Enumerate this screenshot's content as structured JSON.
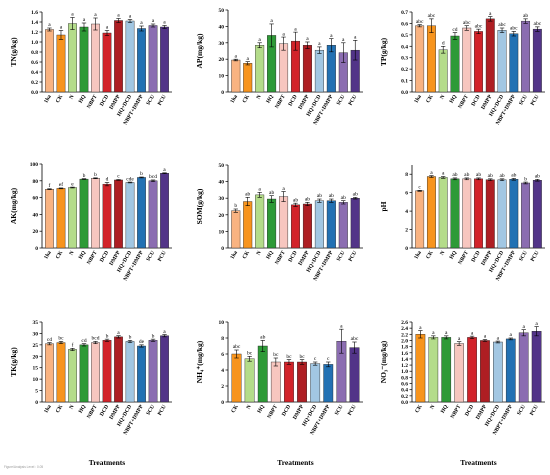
{
  "footer_text": "Figure/Analysis Level : 0.05",
  "charts": [
    {
      "type": "bar",
      "ylabel": "TN(g/kg)",
      "ylim": [
        0,
        1.6
      ],
      "yticks": [
        0,
        0.2,
        0.4,
        0.6,
        0.8,
        1.0,
        1.2,
        1.4,
        1.6
      ],
      "categories": [
        "1ha",
        "CK",
        "N",
        "HQ",
        "NBPT",
        "DCD",
        "DMPP",
        "HQ+DCD",
        "NBPT+DMPP",
        "SCU",
        "PCU"
      ],
      "values": [
        1.25,
        1.14,
        1.37,
        1.3,
        1.36,
        1.18,
        1.43,
        1.42,
        1.27,
        1.33,
        1.3
      ],
      "errors": [
        0.03,
        0.09,
        0.12,
        0.08,
        0.12,
        0.05,
        0.04,
        0.03,
        0.05,
        0.03,
        0.03
      ],
      "letters": [
        "a",
        "a",
        "a",
        "a",
        "a",
        "a",
        "a",
        "a",
        "a",
        "a",
        "a"
      ],
      "xlabel": ""
    },
    {
      "type": "bar",
      "ylabel": "AP(mg/kg)",
      "ylim": [
        0,
        50
      ],
      "yticks": [
        0,
        10,
        20,
        30,
        40,
        50
      ],
      "categories": [
        "1ha",
        "CK",
        "N",
        "HQ",
        "NBPT",
        "DCD",
        "DMPP",
        "HQ+DCD",
        "NBPT+DMPP",
        "SCU",
        "PCU"
      ],
      "values": [
        19.5,
        17.5,
        28.5,
        34.5,
        29.5,
        31,
        28.5,
        25.5,
        28.5,
        24,
        25.5
      ],
      "errors": [
        0.5,
        1,
        1.5,
        7,
        4,
        5.5,
        2,
        2,
        4,
        6,
        6
      ],
      "letters": [
        "a",
        "a",
        "a",
        "a",
        "a",
        "a",
        "a",
        "a",
        "a",
        "a",
        "a"
      ],
      "xlabel": ""
    },
    {
      "type": "bar",
      "ylabel": "TP(g/kg)",
      "ylim": [
        0,
        0.7
      ],
      "yticks": [
        0,
        0.1,
        0.2,
        0.3,
        0.4,
        0.5,
        0.6,
        0.7
      ],
      "categories": [
        "1ha",
        "CK",
        "N",
        "HQ",
        "NBPT",
        "DCD",
        "DMPP",
        "HQ+DCD",
        "NBPT+DMPP",
        "SCU",
        "PCU"
      ],
      "values": [
        0.58,
        0.58,
        0.37,
        0.49,
        0.56,
        0.53,
        0.64,
        0.54,
        0.51,
        0.62,
        0.55
      ],
      "errors": [
        0.01,
        0.06,
        0.03,
        0.03,
        0.02,
        0.02,
        0.02,
        0.02,
        0.02,
        0.02,
        0.02
      ],
      "letters": [
        "abc",
        "abc",
        "d",
        "cd",
        "abc",
        "abc",
        "a",
        "abc",
        "abc",
        "ab",
        "abc"
      ],
      "xlabel": ""
    },
    {
      "type": "bar",
      "ylabel": "AK(mg/kg)",
      "ylim": [
        0,
        100
      ],
      "yticks": [
        0,
        20,
        40,
        60,
        80,
        100
      ],
      "categories": [
        "1ha",
        "CK",
        "N",
        "HQ",
        "NBPT",
        "DCD",
        "DMPP",
        "HQ+DCD",
        "NBPT+DMPP",
        "SCU",
        "PCU"
      ],
      "values": [
        70,
        71,
        72,
        82,
        83,
        76,
        81,
        78,
        84,
        80,
        89
      ],
      "errors": [
        0.5,
        0.5,
        0.5,
        0.5,
        0.5,
        2,
        0.5,
        0.5,
        0.5,
        1,
        0.5
      ],
      "letters": [
        "f",
        "ef",
        "e",
        "b",
        "b",
        "d",
        "c",
        "cde",
        "b",
        "bcd",
        "a"
      ],
      "xlabel": ""
    },
    {
      "type": "bar",
      "ylabel": "SOM(g/kg)",
      "ylim": [
        0,
        50
      ],
      "yticks": [
        0,
        10,
        20,
        30,
        40,
        50
      ],
      "categories": [
        "1ha",
        "CK",
        "N",
        "HQ",
        "NBPT",
        "DCD",
        "DMPP",
        "HQ+DCD",
        "NBPT+DMPP",
        "SCU",
        "PCU"
      ],
      "values": [
        22.5,
        28,
        32,
        29.5,
        31,
        26,
        26.5,
        28.5,
        28.5,
        27.5,
        30
      ],
      "errors": [
        1,
        2.5,
        1.5,
        2,
        3,
        1,
        1,
        1,
        1,
        1,
        0.5
      ],
      "letters": [
        "b",
        "ab",
        "a",
        "ab",
        "a",
        "ab",
        "ab",
        "ab",
        "ab",
        "ab",
        "ab"
      ],
      "xlabel": ""
    },
    {
      "type": "bar",
      "ylabel": "pH",
      "ylim": [
        0,
        9
      ],
      "yticks": [
        0,
        2,
        4,
        6,
        8
      ],
      "categories": [
        "1ha",
        "CK",
        "N",
        "HQ",
        "NBPT",
        "DCD",
        "DMPP",
        "HQ+DCD",
        "NBPT+DMPP",
        "SCU",
        "PCU"
      ],
      "values": [
        6.2,
        7.75,
        7.65,
        7.5,
        7.5,
        7.5,
        7.4,
        7.4,
        7.45,
        7.05,
        7.35
      ],
      "errors": [
        0.05,
        0.1,
        0.1,
        0.1,
        0.1,
        0.1,
        0.1,
        0.1,
        0.1,
        0.1,
        0.1
      ],
      "letters": [
        "c",
        "a",
        "a",
        "ab",
        "ab",
        "ab",
        "ab",
        "ab",
        "ab",
        "b",
        "ab"
      ],
      "xlabel": ""
    },
    {
      "type": "bar",
      "ylabel": "TK(g/kg)",
      "ylim": [
        0,
        35
      ],
      "yticks": [
        0,
        5,
        10,
        15,
        20,
        25,
        30,
        35
      ],
      "categories": [
        "1ha",
        "CK",
        "N",
        "HQ",
        "NBPT",
        "DCD",
        "DMPP",
        "HQ+DCD",
        "NBPT+DMPP",
        "SCU",
        "PCU"
      ],
      "values": [
        25.5,
        26,
        23,
        25,
        26,
        27,
        28.5,
        26.5,
        24.5,
        27,
        29
      ],
      "errors": [
        0.5,
        0.5,
        0.5,
        0.5,
        0.5,
        0.5,
        0.5,
        0.5,
        0.5,
        0.5,
        0.5
      ],
      "letters": [
        "cd",
        "bc",
        "f",
        "cd",
        "bcd",
        "b",
        "a",
        "b",
        "de",
        "b",
        "a"
      ],
      "xlabel": "Treatments"
    },
    {
      "type": "bar",
      "ylabel": "NH₄⁺(mg/kg)",
      "ylim": [
        0,
        10
      ],
      "yticks": [
        0,
        2,
        4,
        6,
        8,
        10
      ],
      "categories": [
        "CK",
        "N",
        "HQ",
        "NBPT",
        "DCD",
        "DMPP",
        "HQ+DCD",
        "NBPT+DMPP",
        "SCU",
        "PCU"
      ],
      "values": [
        6.0,
        5.4,
        7.0,
        5.0,
        5.0,
        5.0,
        4.8,
        4.7,
        7.6,
        6.8
      ],
      "errors": [
        0.5,
        0.3,
        0.7,
        0.5,
        0.3,
        0.3,
        0.2,
        0.3,
        1.5,
        0.7
      ],
      "letters": [
        "abc",
        "bc",
        "ab",
        "bc",
        "bc",
        "bc",
        "c",
        "c",
        "a",
        "abc"
      ],
      "xlabel": "Treatments"
    },
    {
      "type": "bar",
      "ylabel": "NO₃⁻(mg/kg)",
      "ylim": [
        0,
        2.6
      ],
      "yticks": [
        0,
        0.2,
        0.4,
        0.6,
        0.8,
        1.0,
        1.2,
        1.4,
        1.6,
        1.8,
        2.0,
        2.2,
        2.4,
        2.6
      ],
      "categories": [
        "CK",
        "N",
        "HQ",
        "NBPT",
        "DCD",
        "DMPP",
        "HQ+DCD",
        "NBPT+DMPP",
        "SCU",
        "PCU"
      ],
      "values": [
        2.2,
        2.1,
        2.1,
        1.9,
        2.1,
        2.0,
        1.95,
        2.05,
        2.25,
        2.3
      ],
      "errors": [
        0.12,
        0.05,
        0.05,
        0.06,
        0.04,
        0.03,
        0.03,
        0.03,
        0.1,
        0.15
      ],
      "letters": [
        "a",
        "a",
        "a",
        "a",
        "a",
        "a",
        "a",
        "a",
        "a",
        "a"
      ],
      "xlabel": "Treatments"
    }
  ],
  "colors_11": [
    "#f9b381",
    "#f7941d",
    "#b4dc8a",
    "#2e9a37",
    "#f7c6bf",
    "#d2232a",
    "#ae1e23",
    "#a2c7e3",
    "#2271b3",
    "#8b6db1",
    "#523488"
  ],
  "colors_10": [
    "#f7941d",
    "#b4dc8a",
    "#2e9a37",
    "#f7c6bf",
    "#d2232a",
    "#ae1e23",
    "#a2c7e3",
    "#2271b3",
    "#8b6db1",
    "#523488"
  ]
}
